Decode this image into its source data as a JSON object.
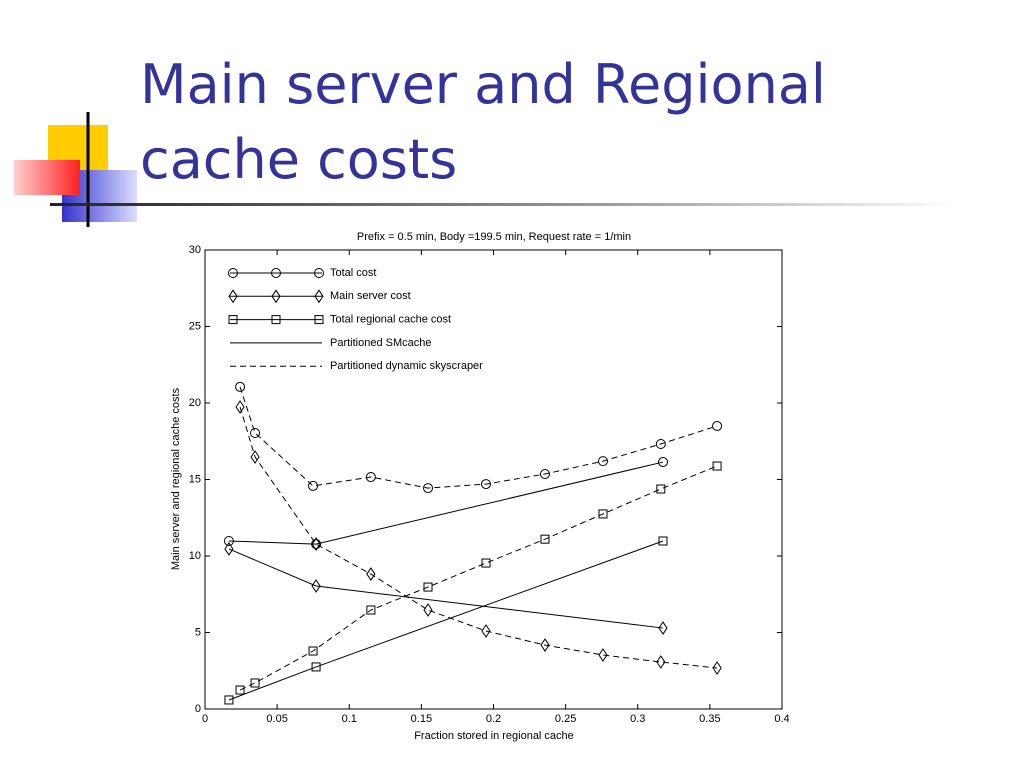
{
  "slide_title": [
    "Main server and Regional",
    "cache costs"
  ],
  "chart_data": {
    "type": "line",
    "title": "Prefix = 0.5 min, Body =199.5 min, Request rate = 1/min",
    "x_label": "Fraction stored in regional cache",
    "y_label": "Main server and regional cache costs",
    "xlim": [
      0,
      0.4
    ],
    "ylim": [
      0,
      30
    ],
    "xticks": [
      0,
      0.05,
      0.1,
      0.15,
      0.2,
      0.25,
      0.3,
      0.35,
      0.4
    ],
    "yticks": [
      0,
      5,
      10,
      15,
      20,
      25,
      30
    ],
    "color": "#000000",
    "legend": [
      {
        "label": "Total cost",
        "marker": "circle",
        "dash": false
      },
      {
        "label": "Main server cost",
        "marker": "diamond",
        "dash": false
      },
      {
        "label": "Total regional cache cost",
        "marker": "square",
        "dash": false
      },
      {
        "label": "Partitioned SMcache",
        "marker": null,
        "dash": false
      },
      {
        "label": "Partitioned dynamic skyscraper",
        "marker": null,
        "dash": true
      }
    ],
    "series": [
      {
        "marker": "circle",
        "dash": false,
        "x": [
          0.0166,
          0.077,
          0.3175
        ],
        "values": [
          10.98,
          10.78,
          16.14
        ]
      },
      {
        "marker": "diamond",
        "dash": false,
        "x": [
          0.0166,
          0.077,
          0.3175
        ],
        "values": [
          10.46,
          8.04,
          5.29
        ]
      },
      {
        "marker": "square",
        "dash": false,
        "x": [
          0.0166,
          0.077,
          0.3175
        ],
        "values": [
          0.59,
          2.75,
          10.98
        ]
      },
      {
        "marker": "circle",
        "dash": true,
        "x": [
          0.0243,
          0.0347,
          0.0749,
          0.115,
          0.1546,
          0.1948,
          0.2357,
          0.2759,
          0.316,
          0.355
        ],
        "values": [
          21.05,
          18.04,
          14.58,
          15.16,
          14.44,
          14.7,
          15.36,
          16.2,
          17.32,
          18.5
        ]
      },
      {
        "marker": "diamond",
        "dash": true,
        "x": [
          0.0243,
          0.0347,
          0.077,
          0.115,
          0.1546,
          0.1948,
          0.2357,
          0.2759,
          0.316,
          0.355
        ],
        "values": [
          19.74,
          16.47,
          10.78,
          8.82,
          6.47,
          5.1,
          4.18,
          3.53,
          3.07,
          2.68
        ]
      },
      {
        "marker": "square",
        "dash": true,
        "x": [
          0.0243,
          0.0347,
          0.0749,
          0.115,
          0.1546,
          0.1948,
          0.2357,
          0.2759,
          0.316,
          0.355
        ],
        "values": [
          1.24,
          1.7,
          3.79,
          6.47,
          7.97,
          9.54,
          11.1,
          12.75,
          14.38,
          15.88
        ]
      }
    ]
  }
}
